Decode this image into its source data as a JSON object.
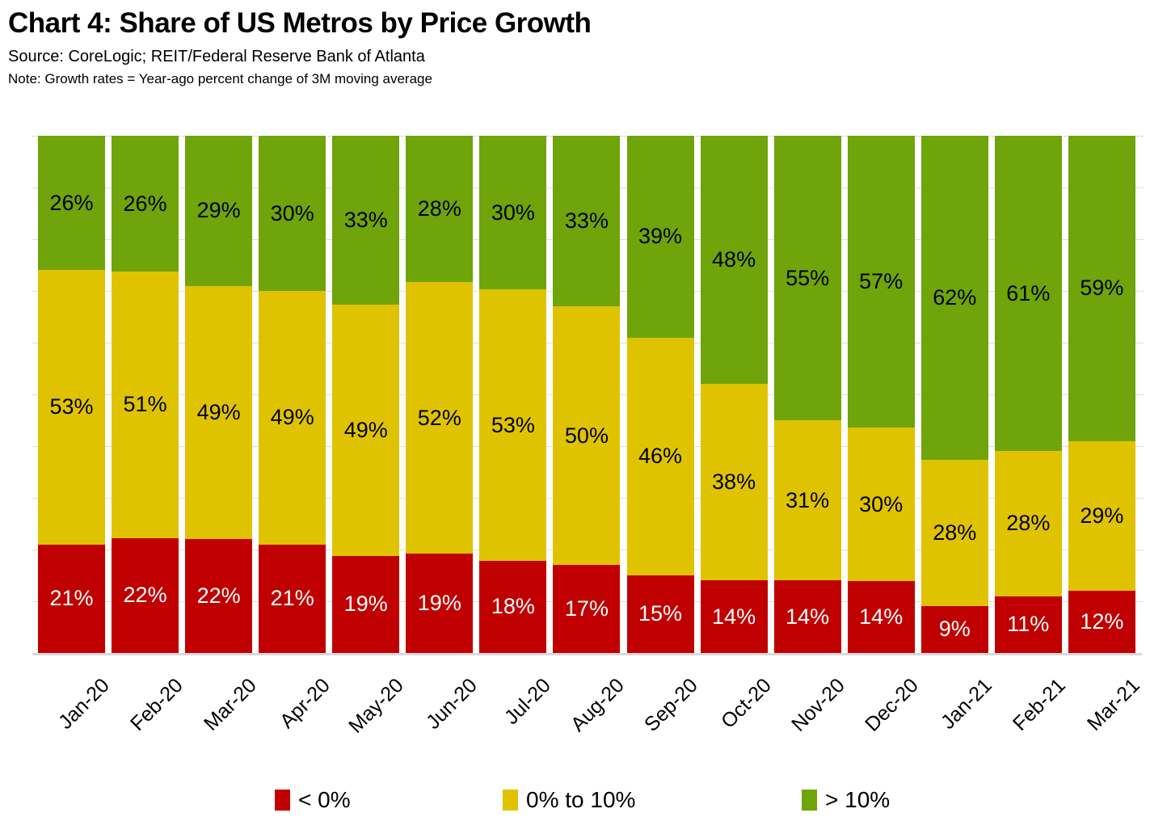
{
  "header": {
    "title": "Chart 4: Share of US Metros by Price Growth",
    "source": "Source: CoreLogic; REIT/Federal Reserve Bank of Atlanta",
    "note": "Note: Growth rates = Year-ago percent change of 3M moving average"
  },
  "chart_data": {
    "type": "bar",
    "subtype": "stacked-100-percent",
    "title": "Chart 4: Share of US Metros by Price Growth",
    "categories": [
      "Jan-20",
      "Feb-20",
      "Mar-20",
      "Apr-20",
      "May-20",
      "Jun-20",
      "Jul-20",
      "Aug-20",
      "Sep-20",
      "Oct-20",
      "Nov-20",
      "Dec-20",
      "Jan-21",
      "Feb-21",
      "Mar-21"
    ],
    "series": [
      {
        "name": "< 0%",
        "color": "#C00000",
        "label_color": "#FFFFFF",
        "values": [
          21,
          22,
          22,
          21,
          19,
          19,
          18,
          17,
          15,
          14,
          14,
          14,
          9,
          11,
          12
        ]
      },
      {
        "name": "0% to 10%",
        "color": "#E0C300",
        "label_color": "#000000",
        "values": [
          53,
          51,
          49,
          49,
          49,
          52,
          53,
          50,
          46,
          38,
          31,
          30,
          28,
          28,
          29
        ]
      },
      {
        "name": "> 10%",
        "color": "#6FA40A",
        "label_color": "#000000",
        "values": [
          26,
          26,
          29,
          30,
          33,
          28,
          30,
          33,
          39,
          48,
          55,
          57,
          62,
          61,
          59
        ]
      }
    ],
    "value_suffix": "%",
    "ylim": [
      0,
      100
    ],
    "grid": true,
    "gridline_interval_percent": 10,
    "legend_position": "bottom",
    "colors": {
      "grid": "#DEDEDE",
      "axis": "#D9D9D9",
      "background": "#FFFFFF"
    }
  }
}
